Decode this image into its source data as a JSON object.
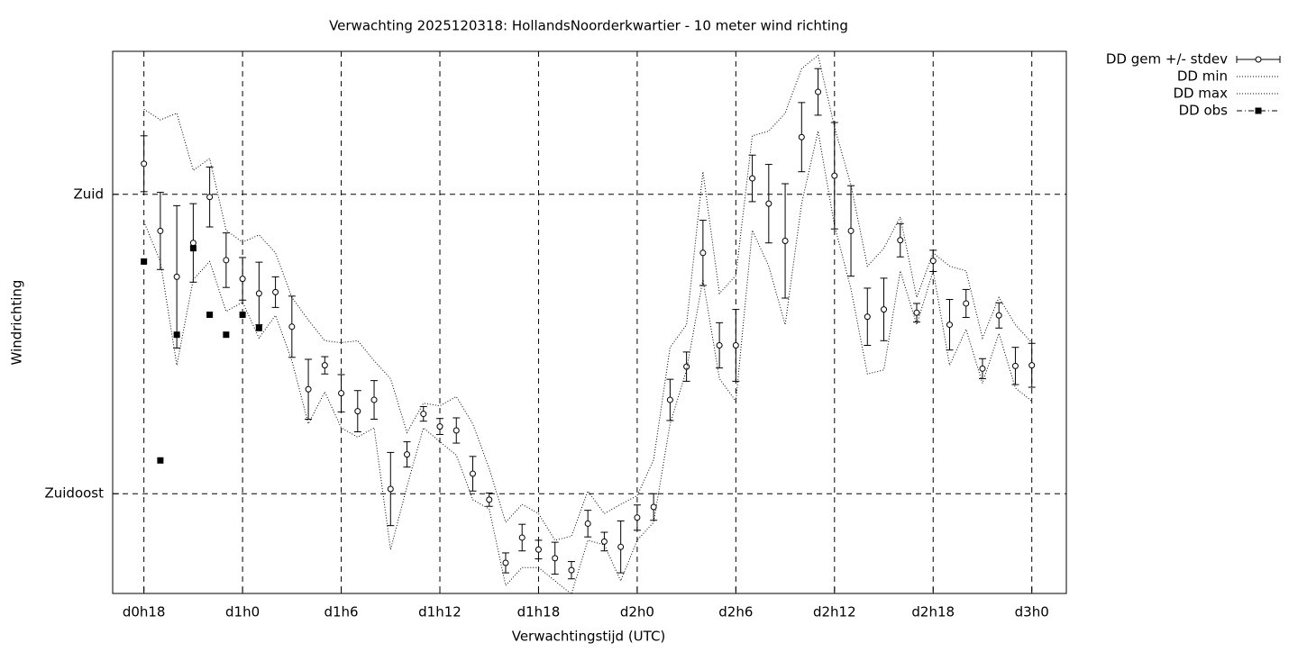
{
  "chart_data": {
    "type": "errorbar",
    "title": "Verwachting 2025120318: HollandsNoorderkwartier - 10 meter wind richting",
    "x_label": "Verwachtingstijd (UTC)",
    "y_label": "Windrichting",
    "x": [
      18,
      19,
      20,
      21,
      22,
      23,
      24,
      25,
      26,
      27,
      28,
      29,
      30,
      31,
      32,
      33,
      34,
      35,
      36,
      37,
      38,
      39,
      40,
      41,
      42,
      43,
      44,
      45,
      46,
      47,
      48,
      49,
      50,
      51,
      52,
      53,
      54,
      55,
      56,
      57,
      58,
      59,
      60,
      61,
      62,
      63,
      64,
      65,
      66,
      67,
      68,
      69,
      70,
      71,
      72
    ],
    "xlim": [
      16.1,
      74.1
    ],
    "xticks": [
      {
        "value": 18,
        "label": "d0h18"
      },
      {
        "value": 24,
        "label": "d1h0"
      },
      {
        "value": 30,
        "label": "d1h6"
      },
      {
        "value": 36,
        "label": "d1h12"
      },
      {
        "value": 42,
        "label": "d1h18"
      },
      {
        "value": 48,
        "label": "d2h0"
      },
      {
        "value": 54,
        "label": "d2h6"
      },
      {
        "value": 60,
        "label": "d2h12"
      },
      {
        "value": 66,
        "label": "d2h18"
      },
      {
        "value": 72,
        "label": "d3h0"
      }
    ],
    "ylim": [
      120,
      201.5
    ],
    "yticks": [
      {
        "value": 135,
        "label": "Zuidoost"
      },
      {
        "value": 180,
        "label": "Zuid"
      }
    ],
    "grid": true,
    "legend": "outside-top-right",
    "series": [
      {
        "name": "DD gem +/- stdev",
        "color": "#000000",
        "style": "errorbar",
        "values": [
          184.6,
          174.5,
          167.6,
          172.7,
          179.6,
          170.1,
          167.3,
          165.1,
          165.3,
          160.1,
          150.7,
          154.3,
          150.1,
          147.4,
          149.1,
          135.7,
          140.9,
          147.0,
          145.1,
          144.5,
          138.0,
          134.1,
          124.6,
          128.4,
          126.6,
          125.3,
          123.5,
          130.5,
          127.8,
          127.0,
          131.4,
          133.0,
          149.1,
          154.1,
          171.2,
          157.3,
          157.3,
          182.4,
          178.6,
          173.0,
          188.6,
          195.4,
          182.8,
          174.5,
          161.6,
          162.7,
          173.1,
          162.2,
          170.0,
          160.4,
          163.6,
          153.8,
          161.8,
          154.2,
          154.3
        ],
        "errors": [
          4.2,
          5.8,
          10.7,
          5.9,
          4.5,
          4.1,
          3.2,
          4.7,
          2.3,
          4.6,
          4.5,
          1.3,
          2.8,
          3.1,
          2.9,
          5.5,
          1.9,
          1.1,
          1.2,
          1.9,
          2.6,
          1.0,
          1.5,
          2.0,
          1.4,
          2.4,
          1.3,
          2.0,
          1.4,
          3.9,
          1.9,
          2.0,
          3.1,
          2.2,
          4.9,
          3.4,
          5.4,
          3.5,
          5.9,
          8.6,
          5.2,
          3.5,
          8.0,
          6.8,
          4.3,
          4.7,
          2.5,
          1.4,
          1.6,
          3.8,
          2.1,
          1.5,
          1.9,
          2.8,
          3.3
        ]
      },
      {
        "name": "DD min",
        "color": "#000000",
        "style": "dotted",
        "values": [
          175.9,
          169.9,
          154.3,
          167.2,
          169.9,
          162.4,
          163.8,
          158.4,
          161.8,
          155.0,
          145.5,
          150.3,
          144.9,
          143.5,
          144.9,
          126.6,
          136.1,
          144.9,
          142.8,
          140.8,
          134.1,
          132.7,
          121.2,
          123.9,
          123.9,
          121.9,
          119.9,
          128.0,
          127.3,
          121.9,
          128.0,
          130.7,
          145.5,
          153.6,
          167.2,
          152.3,
          148.9,
          174.6,
          169.2,
          160.4,
          178.6,
          189.5,
          175.3,
          165.8,
          153.0,
          153.6,
          168.5,
          160.4,
          168.5,
          154.3,
          159.7,
          151.6,
          159.1,
          150.9,
          148.9
        ]
      },
      {
        "name": "DD max",
        "color": "#000000",
        "style": "dotted",
        "values": [
          192.8,
          191.2,
          192.2,
          183.6,
          185.4,
          174.6,
          172.8,
          173.9,
          171.2,
          164.5,
          161.1,
          158.0,
          157.7,
          158.0,
          155.0,
          152.3,
          144.2,
          148.6,
          148.2,
          149.6,
          145.5,
          138.8,
          130.7,
          133.4,
          132.0,
          128.0,
          128.6,
          135.4,
          132.0,
          133.4,
          134.7,
          140.1,
          157.0,
          160.4,
          183.4,
          165.1,
          167.8,
          188.8,
          189.5,
          192.2,
          198.9,
          200.9,
          190.1,
          181.4,
          169.2,
          171.9,
          176.6,
          164.5,
          171.2,
          169.2,
          168.5,
          158.4,
          164.5,
          160.4,
          157.7
        ]
      },
      {
        "name": "DD obs",
        "color": "#000000",
        "style": "points",
        "values": [
          169.9,
          140.0,
          158.9,
          171.9,
          161.9,
          158.9,
          161.9,
          159.9,
          null,
          null,
          null,
          null,
          null,
          null,
          null,
          null,
          null,
          null,
          null,
          null,
          null,
          null,
          null,
          null,
          null,
          null,
          null,
          null,
          null,
          null,
          null,
          null,
          null,
          null,
          null,
          null,
          null,
          null,
          null,
          null,
          null,
          null,
          null,
          null,
          null,
          null,
          null,
          null,
          null,
          null,
          null,
          null,
          null,
          null,
          null
        ]
      }
    ]
  }
}
